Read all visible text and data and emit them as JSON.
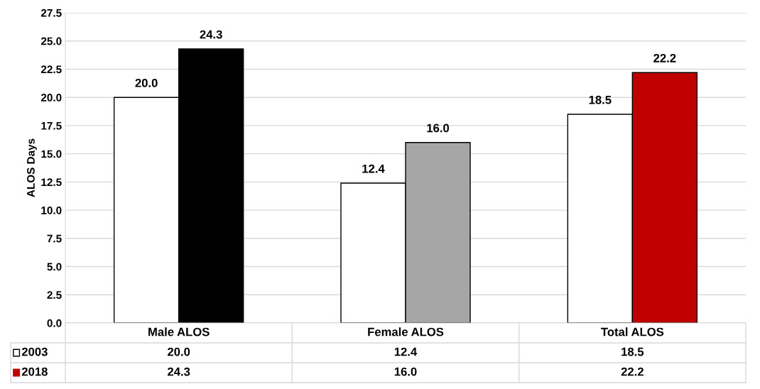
{
  "chart_data": {
    "type": "bar",
    "ylabel": "ALOS Days",
    "categories": [
      "Male ALOS",
      "Female ALOS",
      "Total ALOS"
    ],
    "series": [
      {
        "name": "2003",
        "color": "#ffffff",
        "values": [
          20.0,
          12.4,
          18.5
        ],
        "value_labels": [
          "20.0",
          "12.4",
          "18.5"
        ]
      },
      {
        "name": "2018",
        "color": "#c00000",
        "colors": [
          "#000000",
          "#a6a6a6",
          "#c00000"
        ],
        "values": [
          24.3,
          16.0,
          22.2
        ],
        "value_labels": [
          "24.3",
          "16.0",
          "22.2"
        ]
      }
    ],
    "ylim": [
      0,
      27.5
    ],
    "yticks": [
      {
        "value": 0,
        "label": "0.0"
      },
      {
        "value": 2.5,
        "label": "2.5"
      },
      {
        "value": 5,
        "label": "5.0"
      },
      {
        "value": 7.5,
        "label": "7.5"
      },
      {
        "value": 10,
        "label": "10.0"
      },
      {
        "value": 12.5,
        "label": "12.5"
      },
      {
        "value": 15,
        "label": "15.0"
      },
      {
        "value": 17.5,
        "label": "17.5"
      },
      {
        "value": 20,
        "label": "20.0"
      },
      {
        "value": 22.5,
        "label": "22.5"
      },
      {
        "value": 25,
        "label": "25.0"
      },
      {
        "value": 27.5,
        "label": "27.5"
      }
    ],
    "grid": "y",
    "legend": "bottom"
  }
}
